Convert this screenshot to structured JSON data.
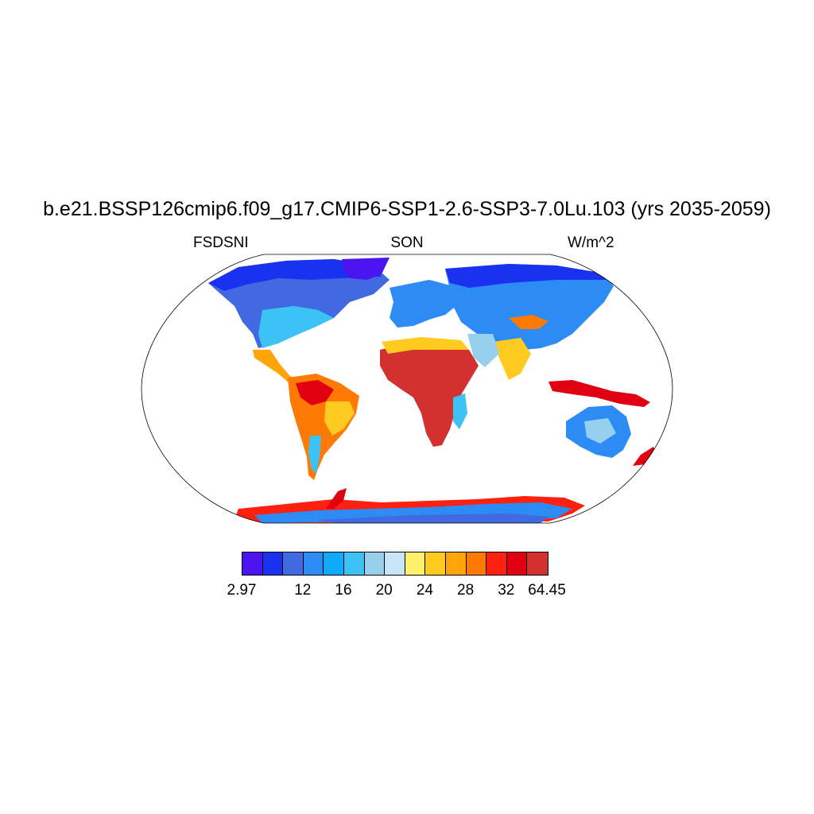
{
  "header": {
    "title": "b.e21.BSSP126cmip6.f09_g17.CMIP6-SSP1-2.6-SSP3-7.0Lu.103 (yrs 2035-2059)",
    "variable": "FSDSNI",
    "season": "SON",
    "units": "W/m^2"
  },
  "map": {
    "projection": "Robinson",
    "field": "FSDSNI",
    "region_fill": [
      {
        "region": "Arctic Canada / Greenland margin",
        "level": "very low (blue-violet)"
      },
      {
        "region": "Sahara and Sahel",
        "level": "very high (dark red)"
      },
      {
        "region": "Amazon / Brazil interior",
        "level": "high (orange-red)"
      },
      {
        "region": "Antarctica coast",
        "level": "high (red)"
      },
      {
        "region": "Antarctica interior",
        "level": "low-mid (blue)"
      },
      {
        "region": "Australia interior",
        "level": "mid (light blue)"
      },
      {
        "region": "Indonesia / New Guinea",
        "level": "very high (red)"
      }
    ]
  },
  "colorbar": {
    "colors": [
      "#4b14f0",
      "#1a32f0",
      "#4169e1",
      "#2c8bf5",
      "#10a8f8",
      "#3dc2f6",
      "#97d0ee",
      "#c6e5f7",
      "#fff06a",
      "#ffcb20",
      "#ffa40a",
      "#ff7a05",
      "#ff2010",
      "#e00010",
      "#d33030"
    ],
    "labels": [
      {
        "text": "2.97",
        "index": 0
      },
      {
        "text": "12",
        "index": 3
      },
      {
        "text": "16",
        "index": 5
      },
      {
        "text": "20",
        "index": 7
      },
      {
        "text": "24",
        "index": 9
      },
      {
        "text": "28",
        "index": 11
      },
      {
        "text": "32",
        "index": 13
      },
      {
        "text": "64.45",
        "index": 15
      }
    ]
  }
}
